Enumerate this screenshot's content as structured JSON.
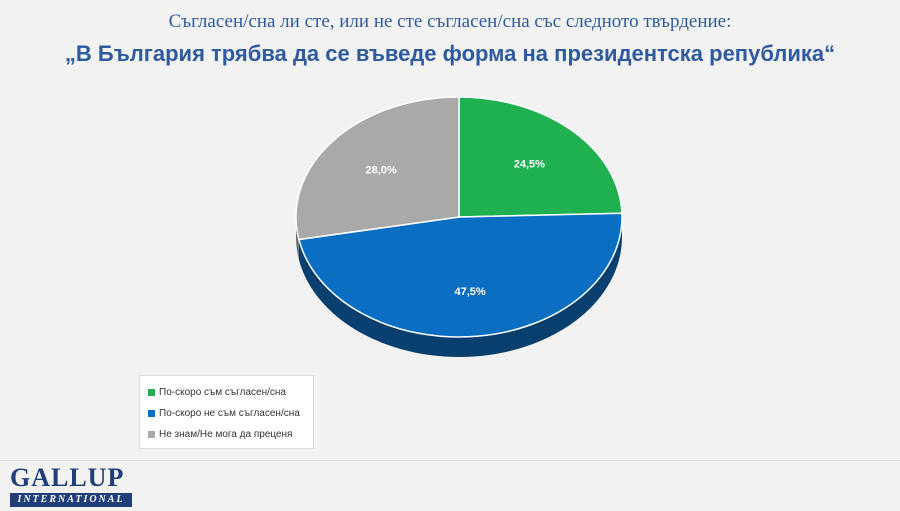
{
  "chart_data": {
    "type": "pie",
    "subtitle": "Съгласен/сна ли сте, или не сте съгласен/сна със следното твърдение:",
    "title": "„В България трябва да се въведе форма на президентска република“",
    "categories": [
      "По-скоро съм съгласен/сна",
      "По-скоро не съм съгласен/сна",
      "Не знам/Не мога да преценя"
    ],
    "values": [
      24.5,
      47.5,
      28.0
    ],
    "value_labels": [
      "24,5%",
      "47,5%",
      "28,0%"
    ],
    "colors": [
      "#1fb050",
      "#0a6fc2",
      "#a9a9a9"
    ],
    "side_colors": [
      "#127a36",
      "#07406f",
      "#6f6f6f"
    ],
    "legend_position": "bottom-left",
    "style": "3d"
  },
  "logo": {
    "top": "GALLUP",
    "bottom": "INTERNATIONAL"
  }
}
